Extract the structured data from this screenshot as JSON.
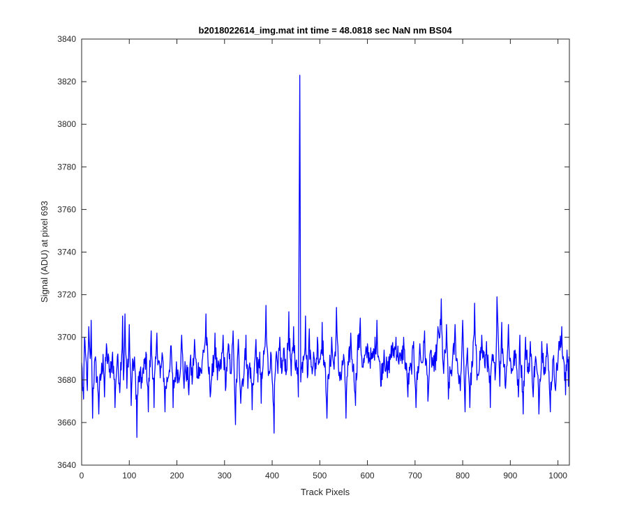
{
  "chart_data": {
    "type": "line",
    "title": "b2018022614_img.mat int time = 48.0818 sec  NaN nm BS04",
    "xlabel": "Track Pixels",
    "ylabel": "Signal (ADU) at pixel 693",
    "xlim": [
      0,
      1024
    ],
    "ylim": [
      3640,
      3840
    ],
    "xticks": [
      0,
      100,
      200,
      300,
      400,
      500,
      600,
      700,
      800,
      900,
      1000
    ],
    "yticks": [
      3640,
      3660,
      3680,
      3700,
      3720,
      3740,
      3760,
      3780,
      3800,
      3820,
      3840
    ],
    "grid": false,
    "line_color": "#0000ff",
    "series": [
      {
        "n_points": 1024,
        "baseline_mean": 3687,
        "noise_range": [
          3653,
          3719
        ],
        "points": [
          [
            0,
            3688
          ],
          [
            2,
            3675
          ],
          [
            4,
            3671
          ],
          [
            6,
            3700
          ],
          [
            9,
            3690
          ],
          [
            12,
            3675
          ],
          [
            15,
            3705
          ],
          [
            18,
            3690
          ],
          [
            20,
            3708
          ],
          [
            23,
            3662
          ],
          [
            28,
            3690
          ],
          [
            36,
            3664
          ],
          [
            45,
            3692
          ],
          [
            48,
            3672
          ],
          [
            52,
            3697
          ],
          [
            60,
            3681
          ],
          [
            65,
            3693
          ],
          [
            70,
            3667
          ],
          [
            75,
            3691
          ],
          [
            80,
            3674
          ],
          [
            86,
            3710
          ],
          [
            88,
            3680
          ],
          [
            91,
            3711
          ],
          [
            95,
            3676
          ],
          [
            100,
            3706
          ],
          [
            104,
            3668
          ],
          [
            108,
            3689
          ],
          [
            112,
            3685
          ],
          [
            116,
            3653
          ],
          [
            120,
            3679
          ],
          [
            125,
            3676
          ],
          [
            130,
            3683
          ],
          [
            135,
            3693
          ],
          [
            140,
            3665
          ],
          [
            146,
            3703
          ],
          [
            152,
            3667
          ],
          [
            158,
            3702
          ],
          [
            165,
            3681
          ],
          [
            170,
            3691
          ],
          [
            175,
            3665
          ],
          [
            182,
            3681
          ],
          [
            188,
            3696
          ],
          [
            192,
            3667
          ],
          [
            198,
            3683
          ],
          [
            205,
            3680
          ],
          [
            210,
            3701
          ],
          [
            215,
            3676
          ],
          [
            218,
            3685
          ],
          [
            225,
            3673
          ],
          [
            228,
            3689
          ],
          [
            232,
            3678
          ],
          [
            237,
            3699
          ],
          [
            242,
            3681
          ],
          [
            247,
            3686
          ],
          [
            252,
            3683
          ],
          [
            255,
            3694
          ],
          [
            261,
            3711
          ],
          [
            266,
            3685
          ],
          [
            270,
            3672
          ],
          [
            275,
            3682
          ],
          [
            280,
            3702
          ],
          [
            285,
            3680
          ],
          [
            292,
            3685
          ],
          [
            297,
            3701
          ],
          [
            302,
            3675
          ],
          [
            308,
            3697
          ],
          [
            313,
            3683
          ],
          [
            318,
            3703
          ],
          [
            323,
            3659
          ],
          [
            329,
            3699
          ],
          [
            334,
            3669
          ],
          [
            340,
            3680
          ],
          [
            345,
            3701
          ],
          [
            349,
            3676
          ],
          [
            353,
            3688
          ],
          [
            358,
            3666
          ],
          [
            362,
            3683
          ],
          [
            366,
            3699
          ],
          [
            370,
            3679
          ],
          [
            374,
            3693
          ],
          [
            377,
            3669
          ],
          [
            381,
            3687
          ],
          [
            384,
            3695
          ],
          [
            387,
            3715
          ],
          [
            392,
            3682
          ],
          [
            397,
            3693
          ],
          [
            400,
            3680
          ],
          [
            404,
            3655
          ],
          [
            408,
            3691
          ],
          [
            412,
            3683
          ],
          [
            416,
            3700
          ],
          [
            420,
            3683
          ],
          [
            425,
            3695
          ],
          [
            430,
            3684
          ],
          [
            435,
            3712
          ],
          [
            440,
            3682
          ],
          [
            445,
            3705
          ],
          [
            450,
            3688
          ],
          [
            455,
            3672
          ],
          [
            458,
            3823
          ],
          [
            460,
            3679
          ],
          [
            465,
            3691
          ],
          [
            470,
            3710
          ],
          [
            474,
            3681
          ],
          [
            478,
            3704
          ],
          [
            482,
            3686
          ],
          [
            487,
            3693
          ],
          [
            490,
            3682
          ],
          [
            495,
            3700
          ],
          [
            500,
            3690
          ],
          [
            505,
            3707
          ],
          [
            510,
            3686
          ],
          [
            515,
            3662
          ],
          [
            520,
            3683
          ],
          [
            525,
            3700
          ],
          [
            530,
            3685
          ],
          [
            535,
            3714
          ],
          [
            540,
            3682
          ],
          [
            545,
            3680
          ],
          [
            550,
            3692
          ],
          [
            555,
            3662
          ],
          [
            560,
            3687
          ],
          [
            565,
            3702
          ],
          [
            570,
            3685
          ],
          [
            575,
            3668
          ],
          [
            580,
            3701
          ],
          [
            585,
            3709
          ],
          [
            590,
            3686
          ],
          [
            600,
            3697
          ],
          [
            610,
            3690
          ],
          [
            620,
            3708
          ],
          [
            628,
            3677
          ],
          [
            635,
            3694
          ],
          [
            642,
            3681
          ],
          [
            650,
            3696
          ],
          [
            660,
            3700
          ],
          [
            670,
            3689
          ],
          [
            676,
            3700
          ],
          [
            685,
            3672
          ],
          [
            692,
            3686
          ],
          [
            697,
            3698
          ],
          [
            702,
            3667
          ],
          [
            710,
            3697
          ],
          [
            714,
            3688
          ],
          [
            720,
            3703
          ],
          [
            727,
            3670
          ],
          [
            733,
            3694
          ],
          [
            740,
            3684
          ],
          [
            748,
            3705
          ],
          [
            755,
            3718
          ],
          [
            760,
            3683
          ],
          [
            766,
            3706
          ],
          [
            770,
            3671
          ],
          [
            778,
            3687
          ],
          [
            784,
            3706
          ],
          [
            790,
            3683
          ],
          [
            795,
            3675
          ],
          [
            800,
            3708
          ],
          [
            805,
            3665
          ],
          [
            810,
            3695
          ],
          [
            815,
            3667
          ],
          [
            820,
            3686
          ],
          [
            825,
            3716
          ],
          [
            830,
            3680
          ],
          [
            840,
            3701
          ],
          [
            846,
            3687
          ],
          [
            850,
            3698
          ],
          [
            858,
            3667
          ],
          [
            862,
            3692
          ],
          [
            868,
            3680
          ],
          [
            872,
            3719
          ],
          [
            878,
            3677
          ],
          [
            882,
            3707
          ],
          [
            890,
            3676
          ],
          [
            896,
            3706
          ],
          [
            902,
            3683
          ],
          [
            910,
            3694
          ],
          [
            917,
            3672
          ],
          [
            920,
            3701
          ],
          [
            927,
            3664
          ],
          [
            932,
            3700
          ],
          [
            938,
            3683
          ],
          [
            942,
            3698
          ],
          [
            948,
            3672
          ],
          [
            953,
            3691
          ],
          [
            960,
            3664
          ],
          [
            966,
            3698
          ],
          [
            972,
            3686
          ],
          [
            977,
            3697
          ],
          [
            984,
            3665
          ],
          [
            990,
            3690
          ],
          [
            995,
            3675
          ],
          [
            1002,
            3698
          ],
          [
            1008,
            3705
          ],
          [
            1013,
            3688
          ],
          [
            1016,
            3673
          ],
          [
            1019,
            3694
          ],
          [
            1022,
            3677
          ],
          [
            1023,
            3691
          ]
        ]
      }
    ]
  }
}
